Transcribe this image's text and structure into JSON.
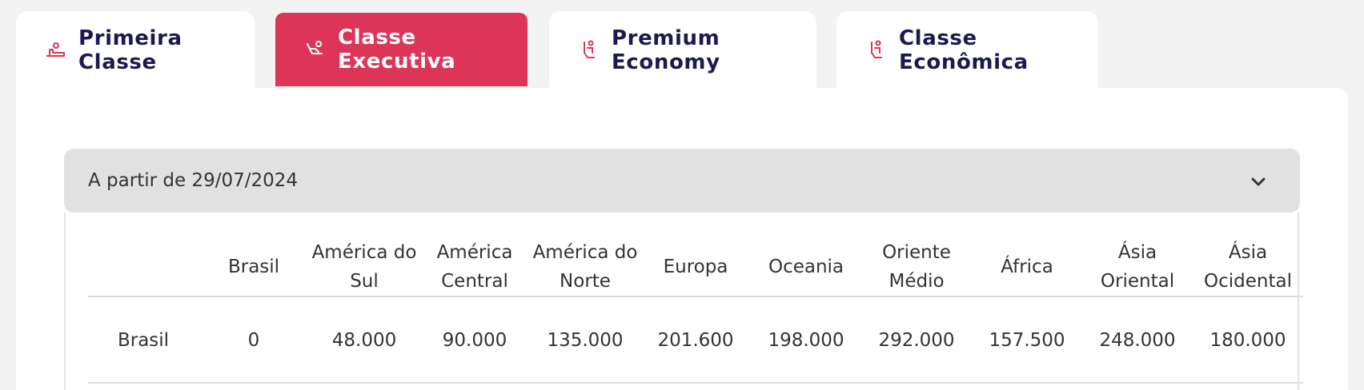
{
  "tabs": [
    {
      "label": "Primeira Classe",
      "icon": "seat-flat-icon",
      "active": false
    },
    {
      "label": "Classe Executiva",
      "icon": "seat-recline-icon",
      "active": true
    },
    {
      "label": "Premium Economy",
      "icon": "seat-upright-icon",
      "active": false
    },
    {
      "label": "Classe Econômica",
      "icon": "seat-upright-icon",
      "active": false
    }
  ],
  "accordion": {
    "title": "A partir de 29/07/2024",
    "icon": "chevron-down-icon"
  },
  "table": {
    "columns": [
      "",
      "Brasil",
      "América do Sul",
      "América Central",
      "América do Norte",
      "Europa",
      "Oceania",
      "Oriente Médio",
      "África",
      "Ásia Oriental",
      "Ásia Ocidental"
    ],
    "rows": [
      [
        "Brasil",
        "0",
        "48.000",
        "90.000",
        "135.000",
        "201.600",
        "198.000",
        "292.000",
        "157.500",
        "248.000",
        "180.000"
      ]
    ]
  },
  "colors": {
    "accent": "#dc3557",
    "tab_text": "#1b1a4e",
    "icon": "#dc3557"
  }
}
